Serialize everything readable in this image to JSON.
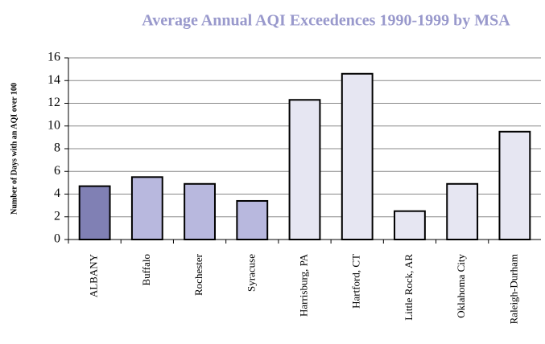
{
  "chart_data": {
    "type": "bar",
    "title": "Average Annual AQI Exceedences 1990-1999 by MSA",
    "y_label": "Number of Days with an AQI over 100",
    "categories": [
      "ALBANY",
      "Buffalo",
      "Rochester",
      "Syracuse",
      "Harrisburg, PA",
      "Hartford, CT",
      "Little Rock, AR",
      "Oklahoma City",
      "Raleigh-Durham"
    ],
    "values": [
      4.7,
      5.5,
      4.9,
      3.4,
      12.3,
      14.6,
      2.5,
      4.9,
      9.5
    ],
    "colors": [
      "#8080b4",
      "#b8b8de",
      "#b8b8de",
      "#b8b8de",
      "#e6e6f2",
      "#e6e6f2",
      "#e6e6f2",
      "#e6e6f2",
      "#e6e6f2"
    ],
    "ylim": [
      0,
      16
    ],
    "yticks": [
      0,
      2,
      4,
      6,
      8,
      10,
      12,
      14,
      16
    ],
    "grid": true
  }
}
